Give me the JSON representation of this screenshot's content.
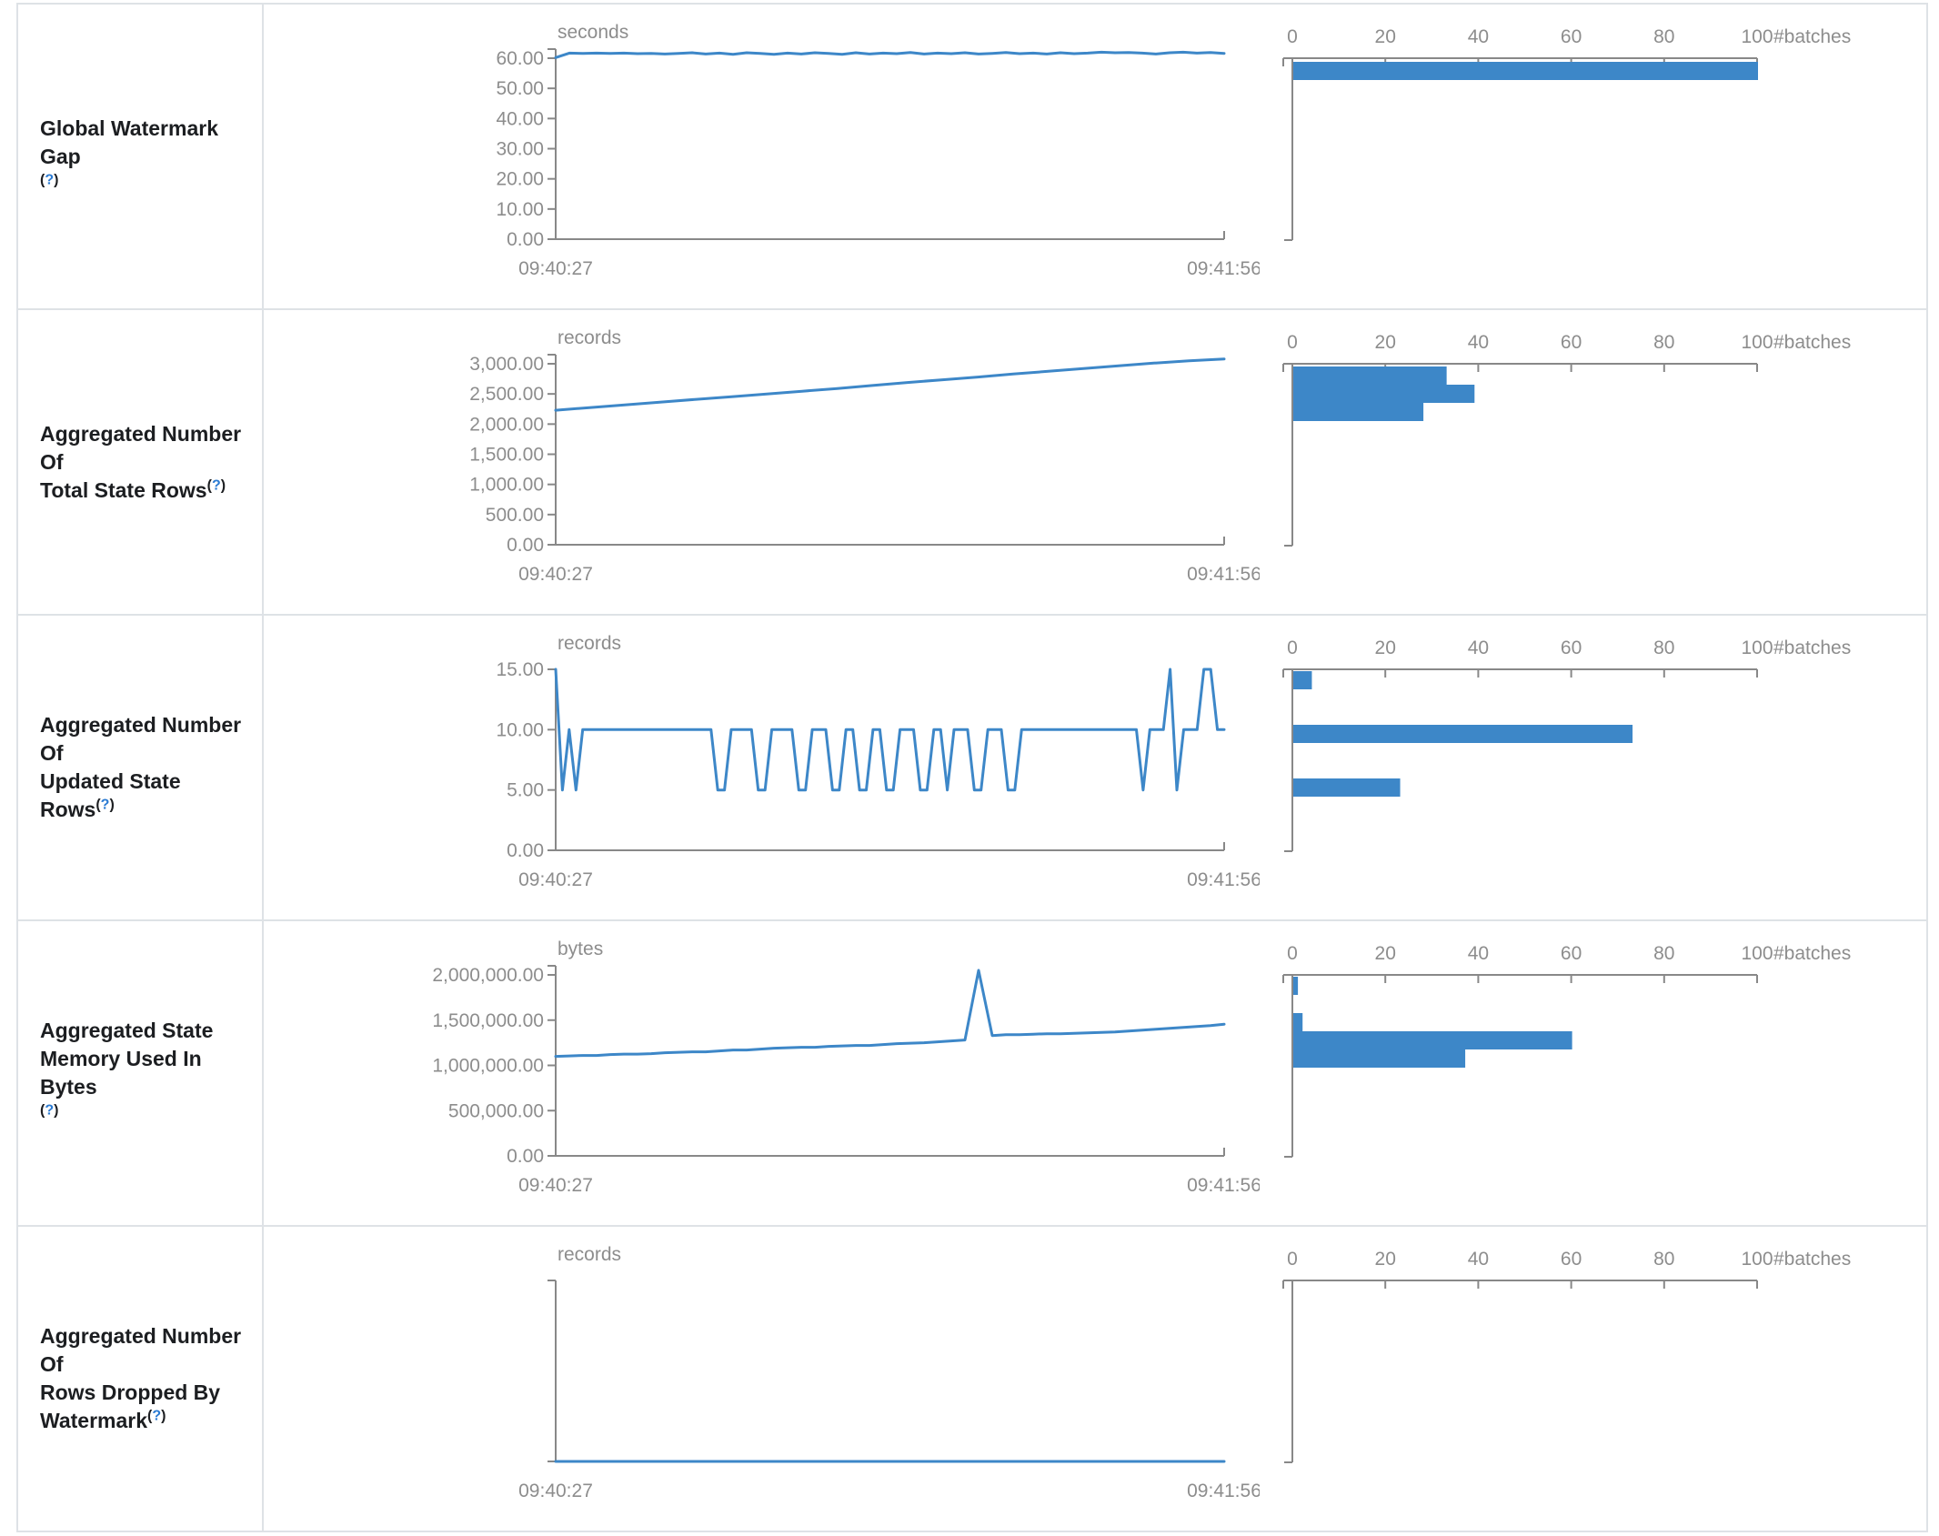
{
  "page": {
    "accent_color": "#3d87c8",
    "axis_color": "#888888",
    "tick_label_color": "#8d8d8d",
    "title_color": "#1c1e21",
    "border_color": "#dee2e6",
    "help_link_color": "#2b7bd3"
  },
  "help": {
    "open": "(",
    "q": "?",
    "close": ")"
  },
  "time_axis": {
    "start": "09:40:27",
    "end": "09:41:56"
  },
  "histogram_axis": {
    "ticks": [
      "0",
      "20",
      "40",
      "60",
      "80",
      "100"
    ],
    "max": 100,
    "unit": "#batches"
  },
  "rows": [
    {
      "title": "Global Watermark Gap",
      "title_lines": [
        "Global Watermark Gap"
      ],
      "help_inline": false,
      "unit": "seconds",
      "y_max": 60,
      "overshoot": true,
      "no_data": false,
      "y_ticks": [
        {
          "v": 60,
          "label": "60.00"
        },
        {
          "v": 50,
          "label": "50.00"
        },
        {
          "v": 40,
          "label": "40.00"
        },
        {
          "v": 30,
          "label": "30.00"
        },
        {
          "v": 20,
          "label": "20.00"
        },
        {
          "v": 10,
          "label": "10.00"
        },
        {
          "v": 0,
          "label": "0.00"
        }
      ],
      "series": [
        60.2,
        61.7,
        61.6,
        61.7,
        61.6,
        61.7,
        61.5,
        61.6,
        61.4,
        61.6,
        61.8,
        61.4,
        61.7,
        61.3,
        61.8,
        61.6,
        61.3,
        61.7,
        61.4,
        61.8,
        61.6,
        61.3,
        61.8,
        61.4,
        61.7,
        61.5,
        61.9,
        61.4,
        61.7,
        61.5,
        61.8,
        61.4,
        61.6,
        61.9,
        61.5,
        61.7,
        61.4,
        61.8,
        61.5,
        61.7,
        62.0,
        61.8,
        61.9,
        61.7,
        61.4,
        61.8,
        62.0,
        61.7,
        61.9,
        61.6
      ],
      "hist_bars": [
        {
          "offset": 4,
          "value": 100
        }
      ]
    },
    {
      "title": "Aggregated Number Of Total State Rows",
      "title_lines": [
        "Aggregated Number Of",
        "Total State Rows"
      ],
      "help_inline": true,
      "unit": "records",
      "y_max": 3000,
      "overshoot": true,
      "no_data": false,
      "y_ticks": [
        {
          "v": 3000,
          "label": "3,000.00"
        },
        {
          "v": 2500,
          "label": "2,500.00"
        },
        {
          "v": 2000,
          "label": "2,000.00"
        },
        {
          "v": 1500,
          "label": "1,500.00"
        },
        {
          "v": 1000,
          "label": "1,000.00"
        },
        {
          "v": 500,
          "label": "500.00"
        },
        {
          "v": 0,
          "label": "0.00"
        }
      ],
      "series": [
        2230,
        2275,
        2320,
        2365,
        2410,
        2455,
        2500,
        2545,
        2590,
        2640,
        2690,
        2735,
        2780,
        2830,
        2875,
        2920,
        2965,
        3010,
        3050,
        3080
      ],
      "hist_bars": [
        {
          "offset": 3,
          "value": 33
        },
        {
          "offset": 23,
          "value": 39
        },
        {
          "offset": 43,
          "value": 28
        }
      ]
    },
    {
      "title": "Aggregated Number Of Updated State Rows",
      "title_lines": [
        "Aggregated Number Of",
        "Updated State Rows"
      ],
      "help_inline": true,
      "unit": "records",
      "y_max": 15,
      "overshoot": false,
      "no_data": false,
      "y_ticks": [
        {
          "v": 15,
          "label": "15.00"
        },
        {
          "v": 10,
          "label": "10.00"
        },
        {
          "v": 5,
          "label": "5.00"
        },
        {
          "v": 0,
          "label": "0.00"
        }
      ],
      "series": [
        15,
        5,
        10,
        5,
        10,
        10,
        10,
        10,
        10,
        10,
        10,
        10,
        10,
        10,
        10,
        10,
        10,
        10,
        10,
        10,
        10,
        10,
        10,
        10,
        5,
        5,
        10,
        10,
        10,
        10,
        5,
        5,
        10,
        10,
        10,
        10,
        5,
        5,
        10,
        10,
        10,
        5,
        5,
        10,
        10,
        5,
        5,
        10,
        10,
        5,
        5,
        10,
        10,
        10,
        5,
        5,
        10,
        10,
        5,
        10,
        10,
        10,
        5,
        5,
        10,
        10,
        10,
        5,
        5,
        10,
        10,
        10,
        10,
        10,
        10,
        10,
        10,
        10,
        10,
        10,
        10,
        10,
        10,
        10,
        10,
        10,
        10,
        5,
        10,
        10,
        10,
        15,
        5,
        10,
        10,
        10,
        15,
        15,
        10,
        10
      ],
      "hist_bars": [
        {
          "offset": 2,
          "value": 4
        },
        {
          "offset": 61,
          "value": 73
        },
        {
          "offset": 120,
          "value": 23
        }
      ]
    },
    {
      "title": "Aggregated State Memory Used In Bytes",
      "title_lines": [
        "Aggregated State",
        "Memory Used In Bytes"
      ],
      "help_inline": false,
      "unit": "bytes",
      "y_max": 2000000,
      "overshoot": true,
      "no_data": false,
      "y_ticks": [
        {
          "v": 2000000,
          "label": "2,000,000.00"
        },
        {
          "v": 1500000,
          "label": "1,500,000.00"
        },
        {
          "v": 1000000,
          "label": "1,000,000.00"
        },
        {
          "v": 500000,
          "label": "500,000.00"
        },
        {
          "v": 0,
          "label": "0.00"
        }
      ],
      "series": [
        1100000,
        1105000,
        1110000,
        1110000,
        1120000,
        1125000,
        1125000,
        1130000,
        1140000,
        1145000,
        1150000,
        1150000,
        1160000,
        1170000,
        1170000,
        1180000,
        1190000,
        1195000,
        1200000,
        1200000,
        1210000,
        1215000,
        1220000,
        1220000,
        1230000,
        1240000,
        1245000,
        1250000,
        1260000,
        1270000,
        1280000,
        2050000,
        1330000,
        1340000,
        1340000,
        1345000,
        1350000,
        1350000,
        1355000,
        1360000,
        1365000,
        1370000,
        1380000,
        1390000,
        1400000,
        1410000,
        1420000,
        1430000,
        1440000,
        1455000
      ],
      "hist_bars": [
        {
          "offset": 2,
          "value": 1
        },
        {
          "offset": 42,
          "value": 2
        },
        {
          "offset": 62,
          "value": 60
        },
        {
          "offset": 82,
          "value": 37
        }
      ]
    },
    {
      "title": "Aggregated Number Of Rows Dropped By Watermark",
      "title_lines": [
        "Aggregated Number Of",
        "Rows Dropped By",
        "Watermark"
      ],
      "help_inline": true,
      "unit": "records",
      "y_max": 1,
      "overshoot": false,
      "no_data": true,
      "y_ticks": [],
      "series": [
        0,
        0
      ],
      "hist_bars": []
    }
  ]
}
